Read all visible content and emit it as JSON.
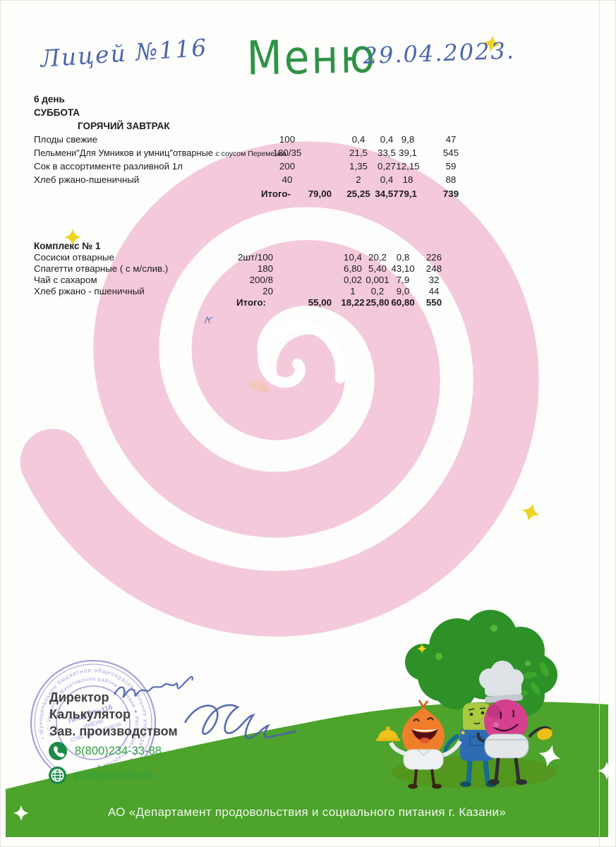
{
  "header": {
    "school_handwritten": "Лицей №116",
    "title": "Меню",
    "date_handwritten": "29.04.2023."
  },
  "menu": {
    "day_number": "6 день",
    "day_name": "СУББОТА",
    "breakfast": {
      "heading": "ГОРЯЧИЙ ЗАВТРАК",
      "rows": [
        {
          "name": "Плоды свежие",
          "portion": "100",
          "protein": "0,4",
          "fat": "0,4",
          "carbs": "9,8",
          "kcal": "47"
        },
        {
          "name": "Пельмени\"Для Умников и умниц\"отварные",
          "name_small": "с соусом Переменка",
          "portion": "180/35",
          "protein": "21,5",
          "fat": "33,5",
          "carbs": "39,1",
          "kcal": "545"
        },
        {
          "name": "Сок в ассортименте разливной 1л",
          "portion": "200",
          "protein": "1,35",
          "fat": "0,27",
          "carbs": "12,15",
          "kcal": "59"
        },
        {
          "name": "Хлеб ржано-пшеничный",
          "portion": "40",
          "protein": "2",
          "fat": "0,4",
          "carbs": "18",
          "kcal": "88"
        }
      ],
      "total": {
        "label": "Итого-",
        "price": "79,00",
        "protein": "25,25",
        "fat": "34,57",
        "carbs": "79,1",
        "kcal": "739"
      }
    },
    "complex": {
      "heading": "Комплекс № 1",
      "rows": [
        {
          "name": "Сосиски отварные",
          "portion": "2шт/100",
          "protein": "10,4",
          "fat": "20,2",
          "carbs": "0,8",
          "kcal": "226"
        },
        {
          "name": "Спагетти отварные ( с м/слив.)",
          "portion": "180",
          "protein": "6,80",
          "fat": "5,40",
          "carbs": "43,10",
          "kcal": "248"
        },
        {
          "name": "Чай с сахаром",
          "portion": "200/8",
          "protein": "0,02",
          "fat": "0,001",
          "carbs": "7,9",
          "kcal": "32"
        },
        {
          "name": "Хлеб ржано - пшеничный",
          "portion": "20",
          "protein": "1",
          "fat": "0,2",
          "carbs": "9,0",
          "kcal": "44"
        }
      ],
      "total": {
        "label": "Итого:",
        "price": "55,00",
        "protein": "18,22",
        "fat": "25,80",
        "carbs": "60,80",
        "kcal": "550"
      }
    }
  },
  "officials": {
    "director_label": "Директор",
    "calculator_label": "Калькулятор",
    "production_label": "Зав. производством"
  },
  "contacts": {
    "phone": "8(800)234-33-88",
    "website": "poelidovolen.ru"
  },
  "footer": {
    "company": "АО «Департамент продовольствия и социального питания г. Казани»"
  },
  "stamp": {
    "ring_outer": "• Муниципальное бюджетное общеобразовательное учреждение •",
    "ring_mid": "А.С. Умеркина\" Вахитовского района г. Казани ★ Республика Татарстан ★",
    "center_lines": [
      "ЛИЦЕЙ №116",
      "ИМЕНИ",
      "СОВЕТСКОГО СОЮЗА"
    ]
  },
  "colors": {
    "spiral_pink": "#f4c9dc",
    "brand_green": "#2e9347",
    "footer_green": "#4da32c",
    "handwriting_blue": "#4a66ad",
    "contact_green": "#2f9e43",
    "stamp_violet": "#7466c4",
    "star_yellow": "#eed31f"
  }
}
